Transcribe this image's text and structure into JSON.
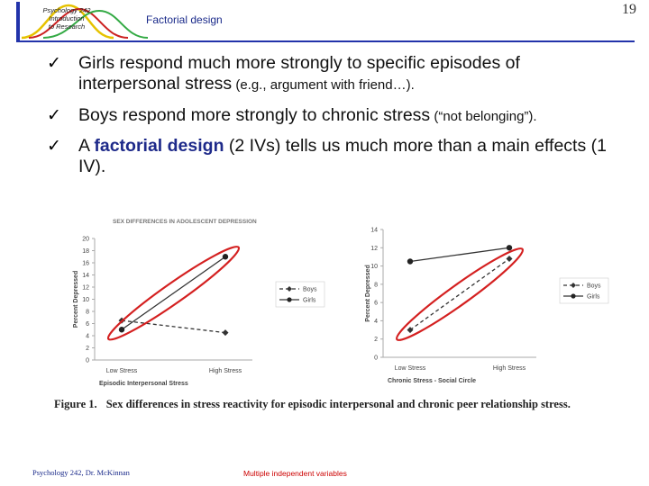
{
  "header": {
    "logo_lines": [
      "Psychology 242",
      "Introduction",
      "to Research"
    ],
    "title": "Factorial design",
    "slide_number": "19"
  },
  "bullets": [
    {
      "text": "Girls respond much more strongly to specific episodes of interpersonal stress",
      "small": " (e.g., argument with friend…)."
    },
    {
      "text": "Boys respond more strongly to chronic stress",
      "small": " (“not belonging”)."
    },
    {
      "pre": "A ",
      "emph": "factorial design",
      "post": " (2 IVs) tells us much more than a main effects (1 IV)."
    }
  ],
  "figure": {
    "caption_label": "Figure 1.",
    "caption_text": "Sex differences in stress reactivity for episodic interpersonal and chronic peer relationship stress."
  },
  "footer": {
    "left": "Psychology 242, Dr. McKinnan",
    "center": "Multiple independent variables"
  },
  "chart_data": [
    {
      "type": "line",
      "title": "SEX DIFFERENCES IN ADOLESCENT DEPRESSION",
      "xlabel": "Episodic Interpersonal Stress",
      "ylabel": "Percent Depressed",
      "categories": [
        "Low Stress",
        "High Stress"
      ],
      "ylim": [
        0,
        20
      ],
      "yticks": [
        0,
        2,
        4,
        6,
        8,
        10,
        12,
        14,
        16,
        18,
        20
      ],
      "legend": "right",
      "series": [
        {
          "name": "Boys",
          "values": [
            6.5,
            4.5
          ],
          "style": "dashed",
          "marker": "diamond"
        },
        {
          "name": "Girls",
          "values": [
            5,
            17
          ],
          "style": "solid",
          "marker": "circle"
        }
      ],
      "highlight_color": "#d42020"
    },
    {
      "type": "line",
      "title": "",
      "xlabel": "Chronic Stress - Social Circle",
      "ylabel": "Percent Depressed",
      "categories": [
        "Low Stress",
        "High Stress"
      ],
      "ylim": [
        0,
        14
      ],
      "yticks": [
        0,
        2,
        4,
        6,
        8,
        10,
        12,
        14
      ],
      "legend": "right",
      "series": [
        {
          "name": "Boys",
          "values": [
            3,
            10.8
          ],
          "style": "dashed",
          "marker": "diamond"
        },
        {
          "name": "Girls",
          "values": [
            10.5,
            12
          ],
          "style": "solid",
          "marker": "circle"
        }
      ],
      "highlight_color": "#d42020"
    }
  ]
}
